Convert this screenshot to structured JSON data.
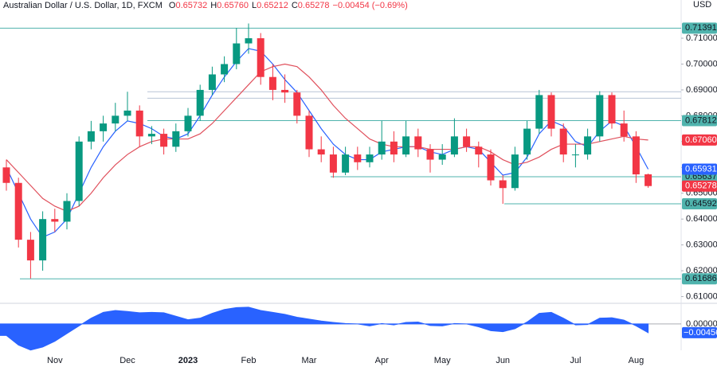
{
  "chart_data": [
    {
      "type": "candlestick",
      "title": "Australian Dollar / U.S. Dollar, 1D, FXCM",
      "ohlc": [
        {
          "name": "O",
          "value": 0.65732,
          "label": "0.65732"
        },
        {
          "name": "H",
          "value": 0.6576,
          "label": "0.65760"
        },
        {
          "name": "L",
          "value": 0.65212,
          "label": "0.65212"
        },
        {
          "name": "C",
          "value": 0.65278,
          "label": "0.65278"
        }
      ],
      "change": "−0.00454 (−0.69%)",
      "currency": "USD",
      "up_color": "#089981",
      "down_color": "#f23645",
      "categories": [
        null,
        null,
        null,
        null,
        "Nov",
        null,
        null,
        null,
        null,
        null,
        "Dec",
        null,
        null,
        null,
        null,
        "2023",
        null,
        null,
        null,
        null,
        "Feb",
        null,
        null,
        null,
        null,
        "Mar",
        null,
        null,
        null,
        null,
        null,
        "Apr",
        null,
        null,
        null,
        null,
        "May",
        null,
        null,
        null,
        null,
        "Jun",
        null,
        null,
        null,
        null,
        null,
        "Jul",
        null,
        null,
        null,
        null,
        "Aug",
        null
      ],
      "open": [
        0.66,
        0.654,
        0.632,
        0.624,
        0.64,
        0.639,
        0.647,
        0.67,
        0.674,
        0.677,
        0.68,
        0.682,
        0.672,
        0.673,
        0.668,
        0.674,
        0.68,
        0.69,
        0.696,
        0.7,
        0.708,
        0.71,
        0.695,
        0.69,
        0.689,
        0.68,
        0.667,
        0.665,
        0.658,
        0.665,
        0.662,
        0.665,
        0.67,
        0.665,
        0.672,
        0.667,
        0.663,
        0.665,
        0.672,
        0.668,
        0.665,
        0.655,
        0.652,
        0.665,
        0.675,
        0.688,
        0.675,
        0.665,
        0.665,
        0.672,
        0.688,
        0.677,
        0.672,
        0.65732
      ],
      "high": [
        0.663,
        0.656,
        0.635,
        0.643,
        0.644,
        0.65,
        0.672,
        0.678,
        0.68,
        0.685,
        0.6893,
        0.684,
        0.676,
        0.675,
        0.677,
        0.683,
        0.692,
        0.699,
        0.703,
        0.714,
        0.7157,
        0.712,
        0.7,
        0.696,
        0.69,
        0.682,
        0.672,
        0.668,
        0.668,
        0.668,
        0.668,
        0.678,
        0.674,
        0.678,
        0.675,
        0.669,
        0.669,
        0.679,
        0.675,
        0.67,
        0.667,
        0.657,
        0.668,
        0.678,
        0.69,
        0.689,
        0.677,
        0.669,
        0.675,
        0.6895,
        0.689,
        0.682,
        0.674,
        0.6576
      ],
      "low": [
        0.651,
        0.629,
        0.617,
        0.62,
        0.635,
        0.636,
        0.645,
        0.667,
        0.67,
        0.674,
        0.678,
        0.668,
        0.669,
        0.665,
        0.666,
        0.672,
        0.678,
        0.688,
        0.693,
        0.698,
        0.704,
        0.692,
        0.686,
        0.685,
        0.677,
        0.664,
        0.662,
        0.656,
        0.657,
        0.659,
        0.66,
        0.663,
        0.662,
        0.664,
        0.664,
        0.658,
        0.661,
        0.664,
        0.666,
        0.66,
        0.653,
        0.6459,
        0.651,
        0.663,
        0.673,
        0.672,
        0.662,
        0.66,
        0.663,
        0.67,
        0.675,
        0.67,
        0.654,
        0.65212
      ],
      "close": [
        0.654,
        0.632,
        0.624,
        0.64,
        0.639,
        0.647,
        0.67,
        0.674,
        0.677,
        0.68,
        0.682,
        0.672,
        0.673,
        0.668,
        0.674,
        0.68,
        0.69,
        0.696,
        0.7,
        0.708,
        0.71,
        0.695,
        0.69,
        0.689,
        0.68,
        0.667,
        0.665,
        0.658,
        0.665,
        0.662,
        0.665,
        0.67,
        0.665,
        0.672,
        0.667,
        0.663,
        0.665,
        0.672,
        0.668,
        0.665,
        0.655,
        0.652,
        0.665,
        0.675,
        0.688,
        0.675,
        0.665,
        0.665,
        0.672,
        0.688,
        0.677,
        0.672,
        0.6573,
        0.65278
      ],
      "ma_lines": [
        {
          "color": "#2962ff",
          "values": [
            0.66,
            0.65,
            0.64,
            0.633,
            0.635,
            0.64,
            0.65,
            0.66,
            0.668,
            0.674,
            0.678,
            0.677,
            0.675,
            0.672,
            0.671,
            0.673,
            0.68,
            0.688,
            0.695,
            0.701,
            0.706,
            0.705,
            0.7,
            0.694,
            0.689,
            0.682,
            0.675,
            0.669,
            0.665,
            0.663,
            0.663,
            0.666,
            0.667,
            0.668,
            0.668,
            0.666,
            0.665,
            0.667,
            0.668,
            0.667,
            0.662,
            0.657,
            0.658,
            0.664,
            0.673,
            0.678,
            0.676,
            0.67,
            0.668,
            0.674,
            0.678,
            0.676,
            0.668,
            0.65931
          ]
        },
        {
          "color": "#e0505c",
          "values": [
            0.663,
            0.658,
            0.653,
            0.648,
            0.645,
            0.643,
            0.645,
            0.65,
            0.656,
            0.661,
            0.665,
            0.668,
            0.67,
            0.671,
            0.671,
            0.671,
            0.673,
            0.677,
            0.682,
            0.687,
            0.692,
            0.697,
            0.699,
            0.7,
            0.699,
            0.695,
            0.69,
            0.684,
            0.679,
            0.675,
            0.671,
            0.669,
            0.668,
            0.668,
            0.668,
            0.667,
            0.667,
            0.667,
            0.668,
            0.668,
            0.666,
            0.663,
            0.661,
            0.662,
            0.664,
            0.667,
            0.669,
            0.669,
            0.669,
            0.67,
            0.671,
            0.672,
            0.671,
            0.6706
          ]
        }
      ],
      "levels": [
        {
          "value": 0.71391,
          "label": "0.71391"
        },
        {
          "value": 0.67812,
          "label": "0.67812"
        },
        {
          "value": 0.65637,
          "label": "0.65637"
        },
        {
          "value": 0.64592,
          "label": "0.64592"
        },
        {
          "value": 0.61686,
          "label": "0.61686"
        }
      ],
      "level_color": "#4fb3ad",
      "guide_lines": [
        0.6893,
        0.6868
      ],
      "badges": [
        {
          "value": 0.6706,
          "label": "0.67060",
          "color": "#f23645"
        },
        {
          "value": 0.65931,
          "label": "0.65931",
          "color": "#2962ff"
        },
        {
          "value": 0.65278,
          "label": "0.65278",
          "color": "#f23645"
        }
      ],
      "ylim": [
        0.6077,
        0.7248
      ],
      "yticks": [
        {
          "value": 0.61,
          "label": "0.61000"
        },
        {
          "value": 0.62,
          "label": "0.62000"
        },
        {
          "value": 0.63,
          "label": "0.63000"
        },
        {
          "value": 0.64,
          "label": "0.64000"
        },
        {
          "value": 0.65,
          "label": "0.65000"
        },
        {
          "value": 0.66,
          "label": "0.66000"
        },
        {
          "value": 0.67,
          "label": "0.67000"
        },
        {
          "value": 0.68,
          "label": "0.68000"
        },
        {
          "value": 0.69,
          "label": "0.69000"
        },
        {
          "value": 0.7,
          "label": "0.70000"
        },
        {
          "value": 0.71,
          "label": "0.71000"
        }
      ]
    },
    {
      "type": "area",
      "color": "#2962ff",
      "values": [
        -0.006,
        -0.011,
        -0.0136,
        -0.012,
        -0.009,
        -0.005,
        -0.001,
        0.003,
        0.006,
        0.007,
        0.0065,
        0.0058,
        0.006,
        0.0058,
        0.004,
        0.0022,
        0.003,
        0.0055,
        0.0075,
        0.0085,
        0.0087,
        0.007,
        0.006,
        0.005,
        0.0035,
        0.0025,
        0.0015,
        0.0008,
        0.0002,
        0.0,
        -0.001,
        0.0002,
        -0.0005,
        0.0008,
        0.001,
        -0.0008,
        -0.001,
        0.0002,
        0.0,
        -0.0015,
        -0.0035,
        -0.004,
        -0.0025,
        0.001,
        0.0055,
        0.006,
        0.003,
        -0.0005,
        -0.0003,
        0.003,
        0.0032,
        0.002,
        -0.001,
        -0.00456
      ],
      "last_label": {
        "value": -0.00456,
        "label": "−0.00456"
      },
      "ylim": [
        -0.0137,
        0.0099
      ],
      "yticks": [
        {
          "value": 0,
          "label": "0.00000"
        }
      ]
    }
  ]
}
